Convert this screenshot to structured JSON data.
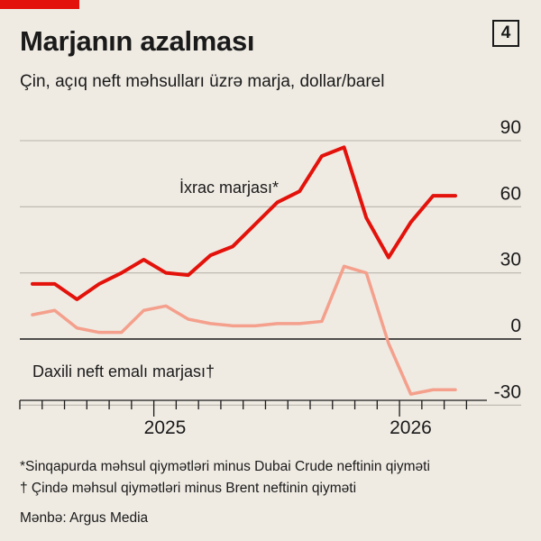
{
  "badge": "4",
  "title": "Marjanın azalması",
  "subtitle": "Çin, açıq neft məhsulları üzrə marja, dollar/barel",
  "footnotes": [
    "*Sinqapurda məhsul qiymətləri minus Dubai Crude neftinin qiyməti",
    "† Çində məhsul qiymətləri minus Brent neftinin qiyməti"
  ],
  "source": "Mənbə: Argus Media",
  "colors": {
    "export": "#e3120b",
    "domestic": "#f4a08c",
    "accent": "#e3120b"
  },
  "chart_data": {
    "type": "line",
    "ylim": [
      -30,
      90
    ],
    "yticks": [
      90,
      60,
      30,
      0,
      -30
    ],
    "xlim": [
      0,
      20
    ],
    "xlabels": [
      {
        "label": "2025",
        "pos": 6.5
      },
      {
        "label": "2026",
        "pos": 17.5
      }
    ],
    "grid": true,
    "series": [
      {
        "name": "İxrac marjası*",
        "color_key": "export",
        "x": [
          0.5,
          1.5,
          2.5,
          3.5,
          4.5,
          5.5,
          6.5,
          7.5,
          8.5,
          9.5,
          10.5,
          11.5,
          12.5,
          13.5,
          14.5,
          15.5,
          16.5,
          17.5,
          18.5,
          19.5
        ],
        "values": [
          25,
          25,
          18,
          25,
          30,
          36,
          30,
          29,
          38,
          42,
          52,
          62,
          67,
          83,
          87,
          55,
          37,
          53,
          65,
          65
        ]
      },
      {
        "name": "Daxili neft emalı marjası†",
        "color_key": "domestic",
        "x": [
          0.5,
          1.5,
          2.5,
          3.5,
          4.5,
          5.5,
          6.5,
          7.5,
          8.5,
          9.5,
          10.5,
          11.5,
          12.5,
          13.5,
          14.5,
          15.5,
          16.5,
          17.5,
          18.5,
          19.5
        ],
        "values": [
          11,
          13,
          5,
          3,
          3,
          13,
          15,
          9,
          7,
          6,
          6,
          7,
          7,
          8,
          33,
          30,
          -2,
          -25,
          -23,
          -23
        ]
      }
    ]
  }
}
